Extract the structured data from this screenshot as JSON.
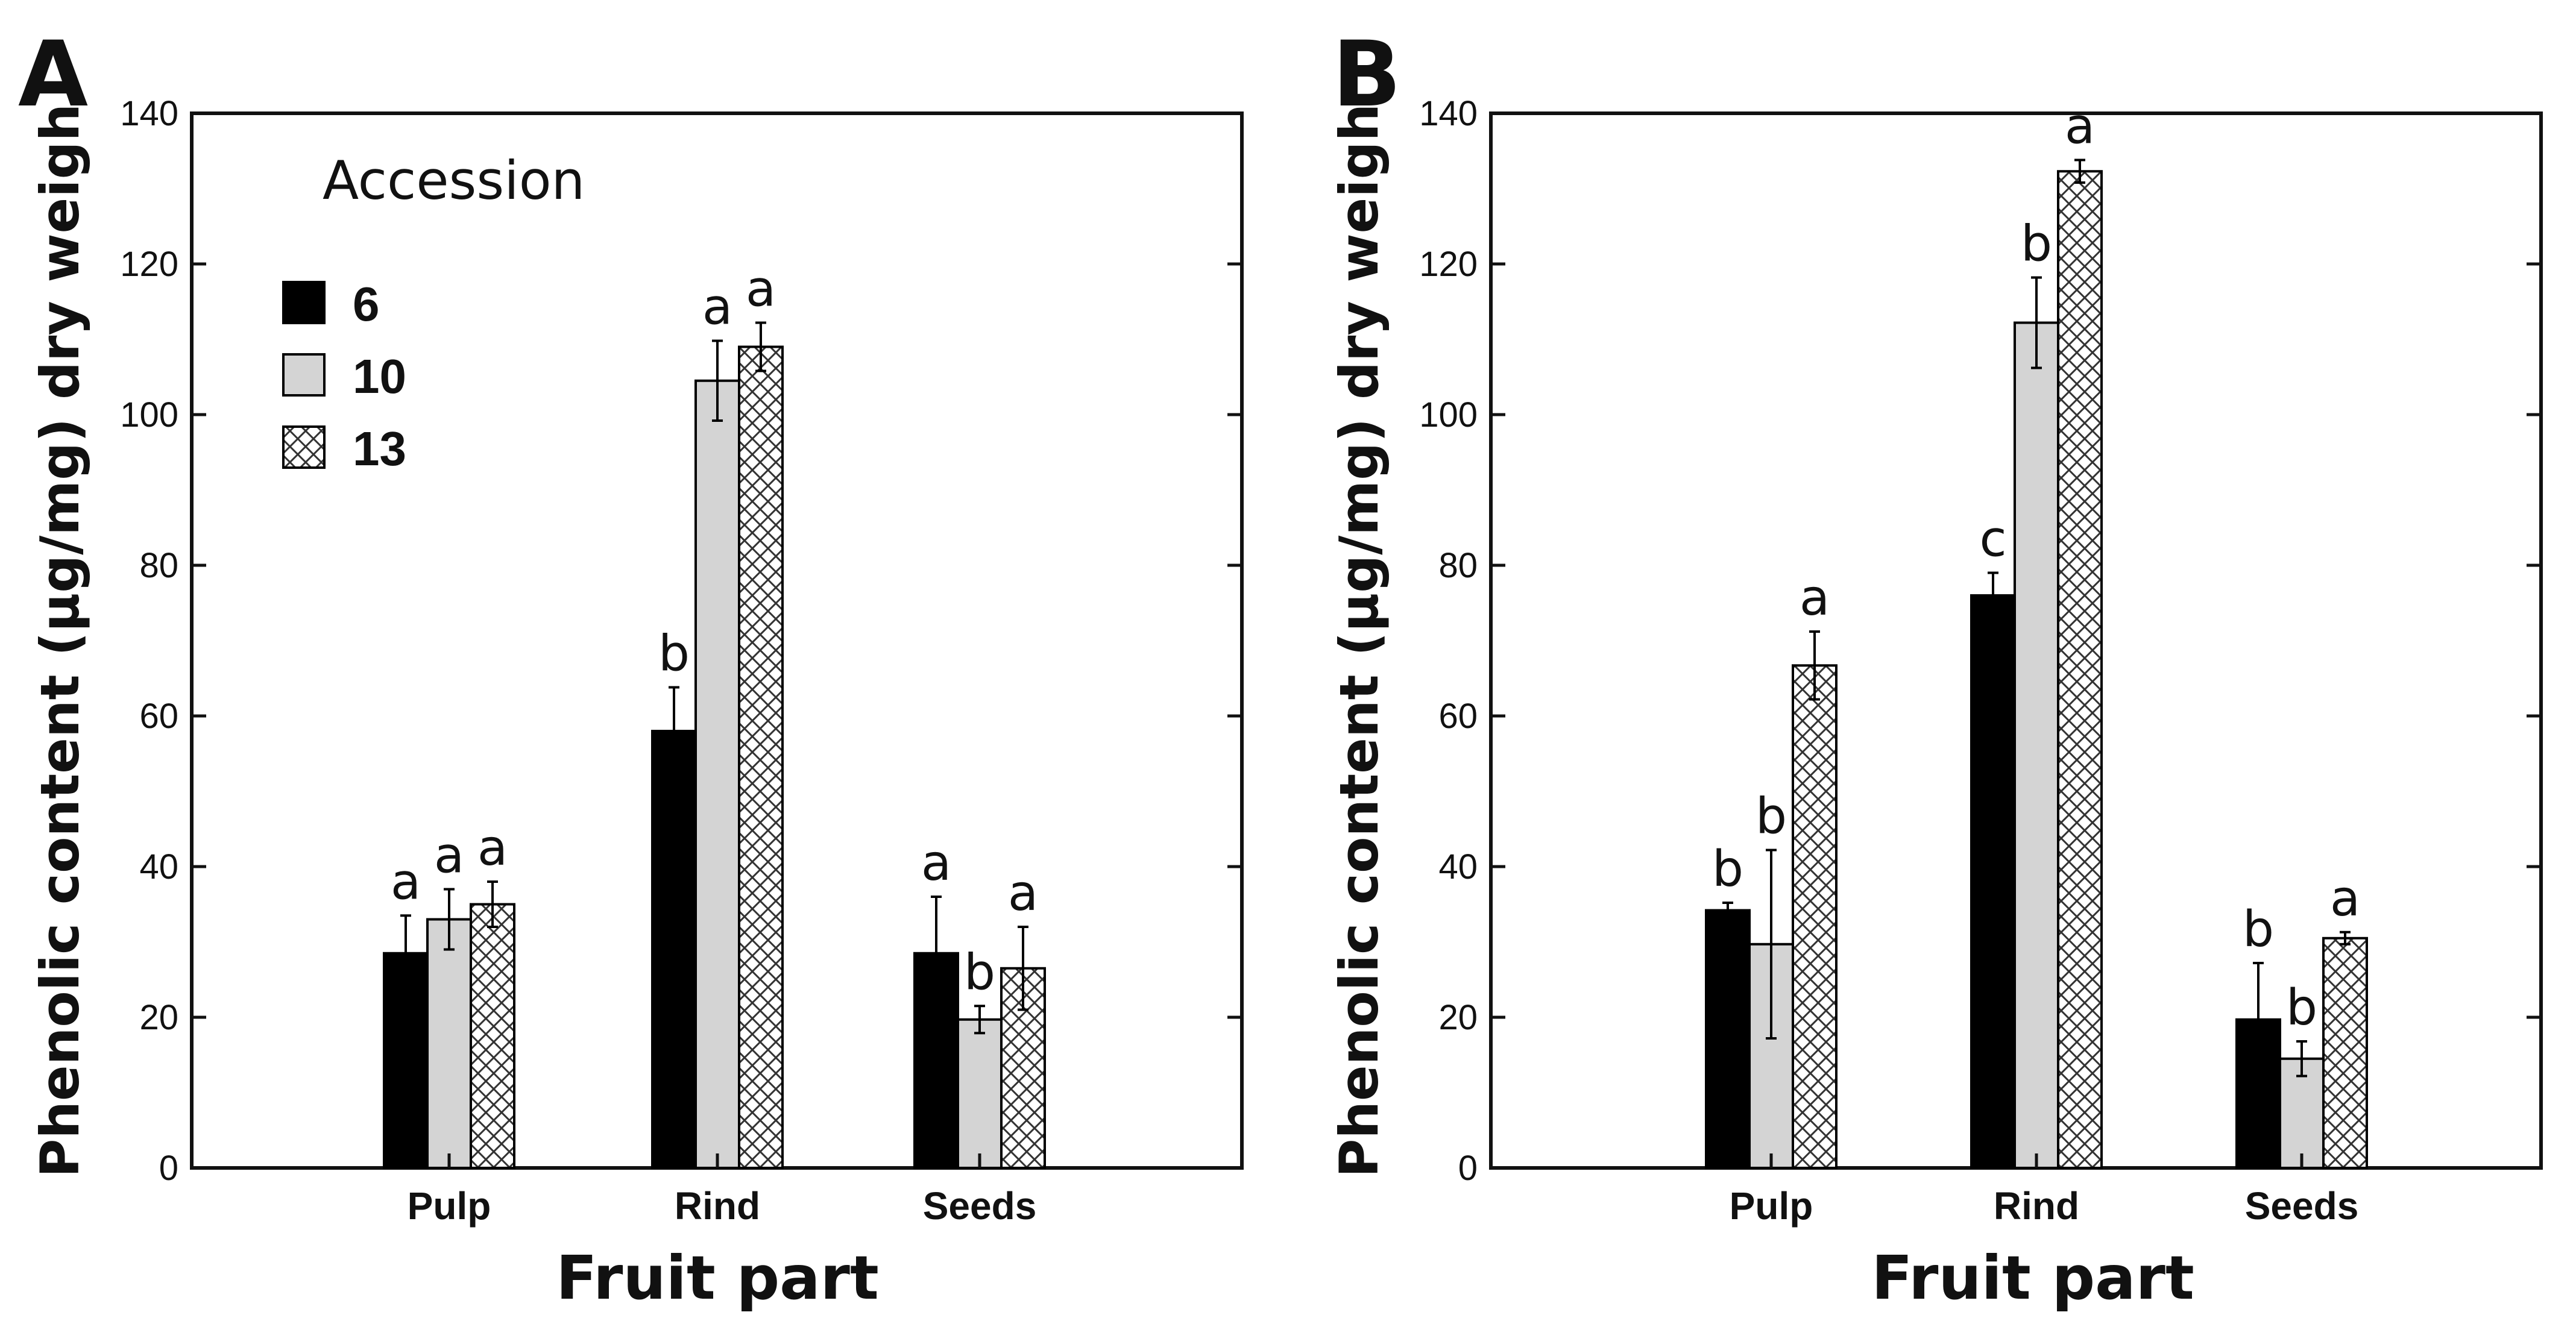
{
  "chart_data": [
    {
      "type": "bar",
      "panel": "A",
      "title": "",
      "xlabel": "Fruit part",
      "ylabel": "Phenolic content (µg/mg) dry weigh",
      "ylim": [
        0,
        140
      ],
      "yticks": [
        0,
        20,
        40,
        60,
        80,
        100,
        120,
        140
      ],
      "categories": [
        "Pulp",
        "Rind",
        "Seeds"
      ],
      "legend": {
        "title": "Accession",
        "position": "top-left"
      },
      "series": [
        {
          "name": "6",
          "fill": "black",
          "values": [
            28.5,
            58,
            28.5
          ],
          "errors": [
            5,
            5.8,
            7.5
          ],
          "labels": [
            "a",
            "b",
            "a"
          ]
        },
        {
          "name": "10",
          "fill": "gray",
          "values": [
            33,
            104.5,
            19.7
          ],
          "errors": [
            4,
            5.3,
            1.8
          ],
          "labels": [
            "a",
            "a",
            "b"
          ]
        },
        {
          "name": "13",
          "fill": "hatch",
          "values": [
            35,
            109,
            26.5
          ],
          "errors": [
            3,
            3.2,
            5.5
          ],
          "labels": [
            "a",
            "a",
            "a"
          ]
        }
      ]
    },
    {
      "type": "bar",
      "panel": "B",
      "title": "",
      "xlabel": "Fruit part",
      "ylabel": "Phenolic content (µg/mg) dry weigh",
      "ylim": [
        0,
        140
      ],
      "yticks": [
        0,
        20,
        40,
        60,
        80,
        100,
        120,
        140
      ],
      "categories": [
        "Pulp",
        "Rind",
        "Seeds"
      ],
      "series": [
        {
          "name": "6",
          "fill": "black",
          "values": [
            34.2,
            76,
            19.7
          ],
          "errors": [
            1,
            3,
            7.5
          ],
          "labels": [
            "b",
            "c",
            "b"
          ]
        },
        {
          "name": "10",
          "fill": "gray",
          "values": [
            29.7,
            112.2,
            14.5
          ],
          "errors": [
            12.5,
            6,
            2.3
          ],
          "labels": [
            "b",
            "b",
            "b"
          ]
        },
        {
          "name": "13",
          "fill": "hatch",
          "values": [
            66.7,
            132.3,
            30.5
          ],
          "errors": [
            4.5,
            1.5,
            0.8
          ],
          "labels": [
            "a",
            "a",
            "a"
          ]
        }
      ]
    }
  ],
  "colors": {
    "black_bar": "#000000",
    "gray_bar": "#d4d4d4",
    "hatch_bg": "#ffffff",
    "hatch_line": "#333333",
    "axis": "#111111"
  }
}
